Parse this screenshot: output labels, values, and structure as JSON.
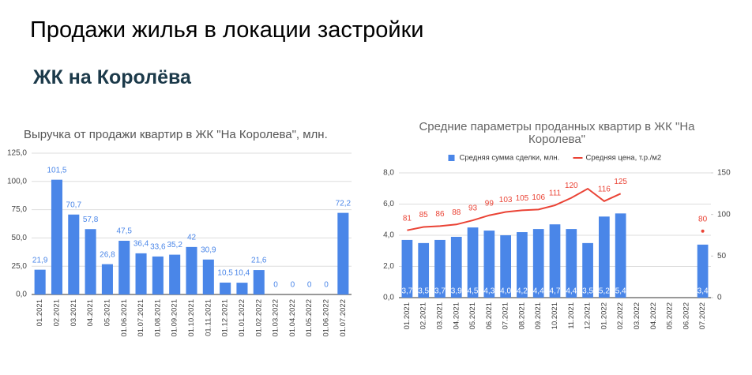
{
  "header": {
    "title": "Продажи жилья в локации застройки",
    "subtitle": "ЖК на Королёва"
  },
  "chart_data": [
    {
      "type": "bar",
      "title": "Выручка от продажи квартир в ЖК \"На Королева\", млн.",
      "categories": [
        "01.2021",
        "02.2021",
        "03.2021",
        "04.2021",
        "05.2021",
        "01.06.2021",
        "01.07.2021",
        "01.08.2021",
        "01.09.2021",
        "01.10.2021",
        "01.11.2021",
        "01.12.2021",
        "01.01.2022",
        "01.02.2022",
        "01.03.2022",
        "01.04.2022",
        "01.05.2022",
        "01.06.2022",
        "01.07.2022"
      ],
      "values": [
        21.9,
        101.5,
        70.7,
        57.8,
        26.8,
        47.5,
        36.4,
        33.6,
        35.2,
        42,
        30.9,
        10.5,
        10.4,
        21.6,
        0,
        0,
        0,
        0,
        72.2
      ],
      "value_labels": [
        "21,9",
        "101,5",
        "70,7",
        "57,8",
        "26,8",
        "47,5",
        "36,4",
        "33,6",
        "35,2",
        "42",
        "30,9",
        "10,5",
        "10,4",
        "21,6",
        "0",
        "0",
        "0",
        "0",
        "72,2"
      ],
      "color": "#4a86e8",
      "ylim": [
        0,
        125
      ],
      "yticks": [
        {
          "value": 0,
          "label": "0,0"
        },
        {
          "value": 25,
          "label": "25,0"
        },
        {
          "value": 50,
          "label": "50,0"
        },
        {
          "value": 75,
          "label": "75,0"
        },
        {
          "value": 100,
          "label": "100,0"
        },
        {
          "value": 125,
          "label": "125,0"
        }
      ],
      "grid": true
    },
    {
      "type": "combo",
      "title": "Средние параметры проданных квартир в ЖК \"На Королева\"",
      "categories": [
        "01.2021",
        "02.2021",
        "03.2021",
        "04.2021",
        "05.2021",
        "06.2021",
        "07.2021",
        "08.2021",
        "09.2021",
        "10.2021",
        "11.2021",
        "12.2021",
        "01.2022",
        "02.2022",
        "03.2022",
        "04.2022",
        "05.2022",
        "06.2022",
        "07.2022"
      ],
      "series": [
        {
          "name": "Средняя сумма сделки, млн.",
          "type": "bar",
          "color": "#4a86e8",
          "values": [
            3.7,
            3.5,
            3.7,
            3.9,
            4.5,
            4.3,
            4.0,
            4.2,
            4.4,
            4.7,
            4.4,
            3.5,
            5.2,
            5.4,
            null,
            null,
            null,
            null,
            3.4
          ],
          "value_labels": [
            "3,7",
            "3,5",
            "3,7",
            "3,9",
            "4,5",
            "4,3",
            "4,0",
            "4,2",
            "4,4",
            "4,7",
            "4,4",
            "3,5",
            "5,2",
            "5,4",
            null,
            null,
            null,
            null,
            "3,4"
          ]
        },
        {
          "name": "Средняя цена, т.р./м2",
          "type": "line",
          "color": "#ea4335",
          "axis": "y2",
          "values": [
            81,
            85,
            86,
            88,
            93,
            99,
            103,
            105,
            106,
            111,
            120,
            131,
            116,
            125,
            null,
            null,
            null,
            null,
            80
          ],
          "value_labels": [
            "81",
            "85",
            "86",
            "88",
            "93",
            "99",
            "103",
            "105",
            "106",
            "111",
            "120",
            null,
            "116",
            "125",
            null,
            null,
            null,
            null,
            "80"
          ]
        }
      ],
      "ylim": [
        0,
        8
      ],
      "yticks": [
        {
          "value": 0,
          "label": "0,0"
        },
        {
          "value": 2,
          "label": "2,0"
        },
        {
          "value": 4,
          "label": "4,0"
        },
        {
          "value": 6,
          "label": "6,0"
        },
        {
          "value": 8,
          "label": "8,0"
        }
      ],
      "y2lim": [
        0,
        150
      ],
      "y2ticks": [
        0,
        50,
        100,
        150
      ],
      "grid": true,
      "legend": "top"
    }
  ]
}
